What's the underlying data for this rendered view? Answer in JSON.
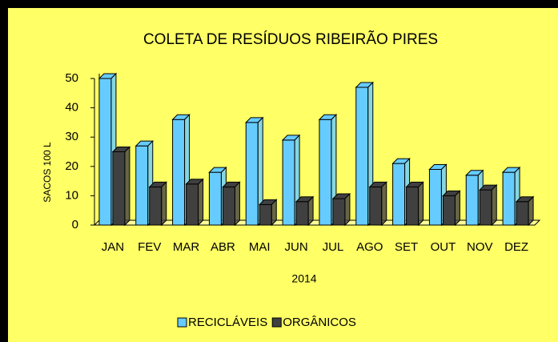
{
  "chart_data": {
    "type": "bar3d",
    "title": "COLETA DE RESÍDUOS RIBEIRÃO PIRES",
    "xlabel": "2014",
    "ylabel": "SACOS 100 L",
    "categories": [
      "JAN",
      "FEV",
      "MAR",
      "ABR",
      "MAI",
      "JUN",
      "JUL",
      "AGO",
      "SET",
      "OUT",
      "NOV",
      "DEZ"
    ],
    "series": [
      {
        "name": "RECICLÁVEIS",
        "color": "#66ccff",
        "values": [
          50,
          27,
          36,
          18,
          35,
          29,
          36,
          47,
          21,
          19,
          17,
          18
        ]
      },
      {
        "name": "ORGÂNICOS",
        "color": "#404040",
        "values": [
          25,
          13,
          14,
          13,
          7,
          8,
          9,
          13,
          13,
          10,
          12,
          8
        ]
      }
    ],
    "ylim": [
      0,
      50
    ],
    "yticks": [
      0,
      10,
      20,
      30,
      40,
      50
    ],
    "legend": "bottom"
  }
}
